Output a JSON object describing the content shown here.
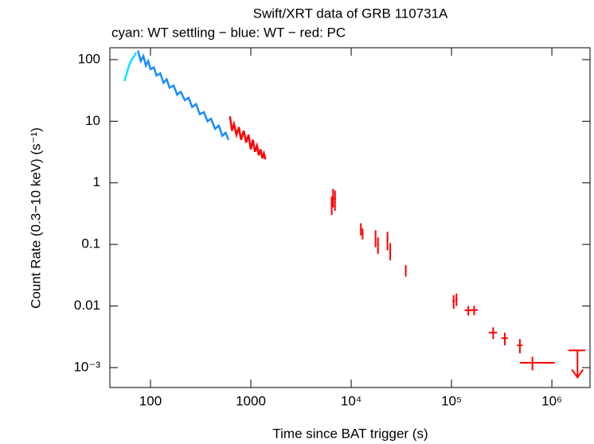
{
  "chart_data": {
    "type": "scatter",
    "title": "Swift/XRT data of GRB 110731A",
    "subtitle": "cyan: WT settling − blue: WT − red: PC",
    "x_label": "Time since BAT trigger (s)",
    "y_label": "Count Rate (0.3−10 keV) (s⁻¹)",
    "x_log": true,
    "y_log": true,
    "xlim": [
      39.4,
      2400000
    ],
    "ylim": [
      0.000475,
      156
    ],
    "xticks": [
      100,
      1000,
      {
        "value": 10000,
        "label": "10⁴"
      },
      {
        "value": 100000,
        "label": "10⁵"
      },
      {
        "value": 1000000,
        "label": "10⁶"
      }
    ],
    "yticks": [
      100,
      10,
      1,
      0.1,
      0.01,
      {
        "value": 0.001,
        "label": "10⁻³"
      }
    ],
    "series": [
      {
        "color": "#00e5ff",
        "x": [
          55,
          58,
          61,
          65,
          68,
          72
        ],
        "values": [
          45,
          60,
          80,
          100,
          110,
          130
        ]
      },
      {
        "color": "#1a8cff",
        "x": [
          75,
          80,
          85,
          90,
          95,
          100,
          108,
          115,
          125,
          135,
          145,
          155,
          170,
          185,
          200,
          220,
          240,
          260,
          285,
          310,
          340,
          370,
          400,
          440,
          480,
          520,
          560,
          600
        ],
        "values": [
          140,
          95,
          115,
          80,
          95,
          70,
          75,
          55,
          60,
          42,
          48,
          35,
          38,
          27,
          30,
          22,
          24,
          17,
          19,
          13,
          14,
          10,
          11,
          7.5,
          8.5,
          5.8,
          6.5,
          5
        ]
      },
      {
        "color": "#ff0000",
        "x": [
          620,
          650,
          680,
          720,
          760,
          800,
          850,
          900,
          950,
          1000,
          1050,
          1100,
          1150,
          1200,
          1250,
          1300,
          1350,
          1400
        ],
        "values": [
          12,
          7,
          9,
          6,
          8,
          5,
          7,
          4.5,
          6,
          3.5,
          5,
          3.2,
          4,
          2.8,
          3.5,
          2.5,
          3,
          2.4
        ]
      },
      {
        "color": "#ff0000",
        "x": [
          6400,
          6600,
          6900,
          12500,
          13000,
          17500,
          18500,
          23000,
          24500,
          35000,
          105000,
          112000,
          147000,
          168000,
          260000,
          340000,
          480000,
          640000
        ],
        "values": [
          0.45,
          0.6,
          0.55,
          0.18,
          0.15,
          0.13,
          0.1,
          0.12,
          0.08,
          0.038,
          0.012,
          0.013,
          0.0085,
          0.0086,
          0.0037,
          0.003,
          0.0023,
          0.0012
        ],
        "yerr": [
          0.15,
          0.2,
          0.2,
          0.04,
          0.03,
          0.04,
          0.03,
          0.04,
          0.025,
          0.008,
          0.003,
          0.003,
          0.0015,
          0.0015,
          0.0008,
          0.0007,
          0.0006,
          0.0003
        ],
        "xerr": [
          [
            100,
            100
          ],
          [
            100,
            100
          ],
          [
            150,
            150
          ],
          [
            250,
            250
          ],
          [
            250,
            250
          ],
          [
            300,
            300
          ],
          [
            300,
            300
          ],
          [
            400,
            400
          ],
          [
            400,
            400
          ],
          [
            600,
            600
          ],
          [
            3000,
            3000
          ],
          [
            3000,
            3000
          ],
          [
            12000,
            12000
          ],
          [
            15000,
            15000
          ],
          [
            25000,
            25000
          ],
          [
            25000,
            25000
          ],
          [
            30000,
            30000
          ],
          [
            160000,
            430000
          ]
        ]
      }
    ],
    "upper_limits": {
      "color": "#ff0000",
      "x": [
        1800000
      ],
      "values": [
        0.0019
      ],
      "xerr": [
        [
          340000,
          350000
        ]
      ]
    }
  }
}
